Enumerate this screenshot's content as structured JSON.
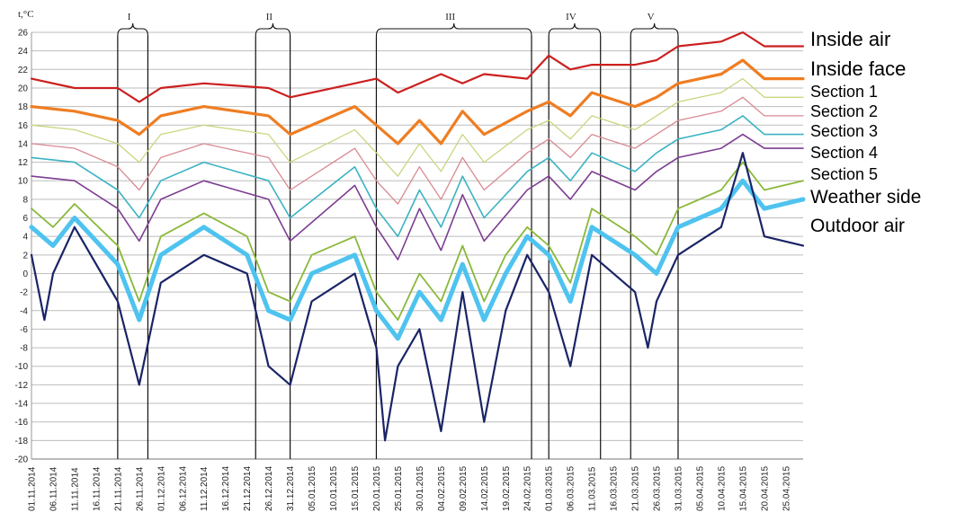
{
  "chart_data": {
    "type": "line",
    "ylabel": "t,°C",
    "ylim": [
      -20,
      26
    ],
    "yticks": [
      -20,
      -18,
      -16,
      -14,
      -12,
      -10,
      -8,
      -6,
      -4,
      -2,
      0,
      2,
      4,
      6,
      8,
      10,
      12,
      14,
      16,
      18,
      20,
      22,
      24,
      26
    ],
    "grid": "horizontal",
    "legend_placement": "right",
    "x_start": "01.11.2014",
    "x_end": "29.04.2015",
    "x_tick_labels": [
      "01.11.2014",
      "06.11.2014",
      "11.11.2014",
      "16.11.2014",
      "21.11.2014",
      "26.11.2014",
      "01.12.2014",
      "06.12.2014",
      "11.12.2014",
      "16.12.2014",
      "21.12.2014",
      "26.12.2014",
      "31.12.2014",
      "05.01.2015",
      "10.01.2015",
      "15.01.2015",
      "20.01.2015",
      "25.01.2015",
      "30.01.2015",
      "04.02.2015",
      "09.02.2015",
      "14.02.2015",
      "19.02.2015",
      "24.02.2015",
      "01.03.2015",
      "06.03.2015",
      "11.03.2015",
      "16.03.2015",
      "21.03.2015",
      "26.03.2015",
      "31.03.2015",
      "05.04.2015",
      "10.04.2015",
      "15.04.2015",
      "20.04.2015",
      "25.04.2015"
    ],
    "periods": [
      {
        "label": "I",
        "start": "21.11.2014",
        "end": "28.11.2014"
      },
      {
        "label": "II",
        "start": "23.12.2014",
        "end": "31.12.2014"
      },
      {
        "label": "III",
        "start": "20.01.2015",
        "end": "25.02.2015"
      },
      {
        "label": "IV",
        "start": "01.03.2015",
        "end": "13.03.2015"
      },
      {
        "label": "V",
        "start": "20.03.2015",
        "end": "31.03.2015"
      }
    ],
    "series": [
      {
        "name": "Inside air",
        "color": "#cc1f1f",
        "points": [
          [
            "01.11.2014",
            21
          ],
          [
            "11.11.2014",
            20
          ],
          [
            "21.11.2014",
            20
          ],
          [
            "26.11.2014",
            18.5
          ],
          [
            "01.12.2014",
            20
          ],
          [
            "11.12.2014",
            20.5
          ],
          [
            "26.12.2014",
            20
          ],
          [
            "31.12.2014",
            19
          ],
          [
            "15.01.2015",
            20.5
          ],
          [
            "20.01.2015",
            21
          ],
          [
            "25.01.2015",
            19.5
          ],
          [
            "04.02.2015",
            21.5
          ],
          [
            "09.02.2015",
            20.5
          ],
          [
            "14.02.2015",
            21.5
          ],
          [
            "24.02.2015",
            21
          ],
          [
            "01.03.2015",
            23.5
          ],
          [
            "06.03.2015",
            22
          ],
          [
            "11.03.2015",
            22.5
          ],
          [
            "21.03.2015",
            22.5
          ],
          [
            "26.03.2015",
            23
          ],
          [
            "31.03.2015",
            24.5
          ],
          [
            "10.04.2015",
            25
          ],
          [
            "15.04.2015",
            26
          ],
          [
            "20.04.2015",
            24.5
          ],
          [
            "29.04.2015",
            24.5
          ]
        ]
      },
      {
        "name": "Inside face",
        "color": "#ef7d22",
        "points": [
          [
            "01.11.2014",
            18
          ],
          [
            "11.11.2014",
            17.5
          ],
          [
            "21.11.2014",
            16.5
          ],
          [
            "26.11.2014",
            15
          ],
          [
            "01.12.2014",
            17
          ],
          [
            "11.12.2014",
            18
          ],
          [
            "26.12.2014",
            17
          ],
          [
            "31.12.2014",
            15
          ],
          [
            "15.01.2015",
            18
          ],
          [
            "20.01.2015",
            16
          ],
          [
            "25.01.2015",
            14
          ],
          [
            "30.01.2015",
            16.5
          ],
          [
            "04.02.2015",
            14
          ],
          [
            "09.02.2015",
            17.5
          ],
          [
            "14.02.2015",
            15
          ],
          [
            "24.02.2015",
            17.5
          ],
          [
            "01.03.2015",
            18.5
          ],
          [
            "06.03.2015",
            17
          ],
          [
            "11.03.2015",
            19.5
          ],
          [
            "21.03.2015",
            18
          ],
          [
            "26.03.2015",
            19
          ],
          [
            "31.03.2015",
            20.5
          ],
          [
            "10.04.2015",
            21.5
          ],
          [
            "15.04.2015",
            23
          ],
          [
            "20.04.2015",
            21
          ],
          [
            "29.04.2015",
            21
          ]
        ]
      },
      {
        "name": "Section 1",
        "color": "#c7d77f",
        "points": [
          [
            "01.11.2014",
            16
          ],
          [
            "11.11.2014",
            15.5
          ],
          [
            "21.11.2014",
            14
          ],
          [
            "26.11.2014",
            12
          ],
          [
            "01.12.2014",
            15
          ],
          [
            "11.12.2014",
            16
          ],
          [
            "26.12.2014",
            15
          ],
          [
            "31.12.2014",
            12
          ],
          [
            "15.01.2015",
            15.5
          ],
          [
            "20.01.2015",
            13
          ],
          [
            "25.01.2015",
            10.5
          ],
          [
            "30.01.2015",
            14
          ],
          [
            "04.02.2015",
            11
          ],
          [
            "09.02.2015",
            15
          ],
          [
            "14.02.2015",
            12
          ],
          [
            "24.02.2015",
            15.5
          ],
          [
            "01.03.2015",
            16.5
          ],
          [
            "06.03.2015",
            14.5
          ],
          [
            "11.03.2015",
            17
          ],
          [
            "21.03.2015",
            15.5
          ],
          [
            "26.03.2015",
            17
          ],
          [
            "31.03.2015",
            18.5
          ],
          [
            "10.04.2015",
            19.5
          ],
          [
            "15.04.2015",
            21
          ],
          [
            "20.04.2015",
            19
          ],
          [
            "29.04.2015",
            19
          ]
        ]
      },
      {
        "name": "Section 2",
        "color": "#d98a92",
        "points": [
          [
            "01.11.2014",
            14
          ],
          [
            "11.11.2014",
            13.5
          ],
          [
            "21.11.2014",
            11.5
          ],
          [
            "26.11.2014",
            9
          ],
          [
            "01.12.2014",
            12.5
          ],
          [
            "11.12.2014",
            14
          ],
          [
            "26.12.2014",
            12.5
          ],
          [
            "31.12.2014",
            9
          ],
          [
            "15.01.2015",
            13.5
          ],
          [
            "20.01.2015",
            10
          ],
          [
            "25.01.2015",
            7.5
          ],
          [
            "30.01.2015",
            11.5
          ],
          [
            "04.02.2015",
            8
          ],
          [
            "09.02.2015",
            12.5
          ],
          [
            "14.02.2015",
            9
          ],
          [
            "24.02.2015",
            13
          ],
          [
            "01.03.2015",
            14.5
          ],
          [
            "06.03.2015",
            12.5
          ],
          [
            "11.03.2015",
            15
          ],
          [
            "21.03.2015",
            13.5
          ],
          [
            "26.03.2015",
            15
          ],
          [
            "31.03.2015",
            16.5
          ],
          [
            "10.04.2015",
            17.5
          ],
          [
            "15.04.2015",
            19
          ],
          [
            "20.04.2015",
            17
          ],
          [
            "29.04.2015",
            17
          ]
        ]
      },
      {
        "name": "Section 3",
        "color": "#3bb3c3",
        "points": [
          [
            "01.11.2014",
            12.5
          ],
          [
            "11.11.2014",
            12
          ],
          [
            "21.11.2014",
            9
          ],
          [
            "26.11.2014",
            6
          ],
          [
            "01.12.2014",
            10
          ],
          [
            "11.12.2014",
            12
          ],
          [
            "26.12.2014",
            10
          ],
          [
            "31.12.2014",
            6
          ],
          [
            "15.01.2015",
            11.5
          ],
          [
            "20.01.2015",
            7
          ],
          [
            "25.01.2015",
            4
          ],
          [
            "30.01.2015",
            9
          ],
          [
            "04.02.2015",
            5
          ],
          [
            "09.02.2015",
            10.5
          ],
          [
            "14.02.2015",
            6
          ],
          [
            "24.02.2015",
            11
          ],
          [
            "01.03.2015",
            12.5
          ],
          [
            "06.03.2015",
            10
          ],
          [
            "11.03.2015",
            13
          ],
          [
            "21.03.2015",
            11
          ],
          [
            "26.03.2015",
            13
          ],
          [
            "31.03.2015",
            14.5
          ],
          [
            "10.04.2015",
            15.5
          ],
          [
            "15.04.2015",
            17
          ],
          [
            "20.04.2015",
            15
          ],
          [
            "29.04.2015",
            15
          ]
        ]
      },
      {
        "name": "Section 4",
        "color": "#7d3d91",
        "points": [
          [
            "01.11.2014",
            10.5
          ],
          [
            "11.11.2014",
            10
          ],
          [
            "21.11.2014",
            7
          ],
          [
            "26.11.2014",
            3.5
          ],
          [
            "01.12.2014",
            8
          ],
          [
            "11.12.2014",
            10
          ],
          [
            "26.12.2014",
            8
          ],
          [
            "31.12.2014",
            3.5
          ],
          [
            "15.01.2015",
            9.5
          ],
          [
            "20.01.2015",
            5
          ],
          [
            "25.01.2015",
            1.5
          ],
          [
            "30.01.2015",
            7
          ],
          [
            "04.02.2015",
            2.5
          ],
          [
            "09.02.2015",
            8.5
          ],
          [
            "14.02.2015",
            3.5
          ],
          [
            "24.02.2015",
            9
          ],
          [
            "01.03.2015",
            10.5
          ],
          [
            "06.03.2015",
            8
          ],
          [
            "11.03.2015",
            11
          ],
          [
            "21.03.2015",
            9
          ],
          [
            "26.03.2015",
            11
          ],
          [
            "31.03.2015",
            12.5
          ],
          [
            "10.04.2015",
            13.5
          ],
          [
            "15.04.2015",
            15
          ],
          [
            "20.04.2015",
            13.5
          ],
          [
            "29.04.2015",
            13.5
          ]
        ]
      },
      {
        "name": "Section 5",
        "color": "#8ab83a",
        "points": [
          [
            "01.11.2014",
            7
          ],
          [
            "06.11.2014",
            5
          ],
          [
            "11.11.2014",
            7.5
          ],
          [
            "21.11.2014",
            3
          ],
          [
            "26.11.2014",
            -3
          ],
          [
            "01.12.2014",
            4
          ],
          [
            "11.12.2014",
            6.5
          ],
          [
            "21.12.2014",
            4
          ],
          [
            "26.12.2014",
            -2
          ],
          [
            "31.12.2014",
            -3
          ],
          [
            "05.01.2015",
            2
          ],
          [
            "15.01.2015",
            4
          ],
          [
            "20.01.2015",
            -2
          ],
          [
            "25.01.2015",
            -5
          ],
          [
            "30.01.2015",
            0
          ],
          [
            "04.02.2015",
            -3
          ],
          [
            "09.02.2015",
            3
          ],
          [
            "14.02.2015",
            -3
          ],
          [
            "19.02.2015",
            2
          ],
          [
            "24.02.2015",
            5
          ],
          [
            "01.03.2015",
            3
          ],
          [
            "06.03.2015",
            -1
          ],
          [
            "11.03.2015",
            7
          ],
          [
            "21.03.2015",
            4
          ],
          [
            "26.03.2015",
            2
          ],
          [
            "31.03.2015",
            7
          ],
          [
            "10.04.2015",
            9
          ],
          [
            "15.04.2015",
            12
          ],
          [
            "20.04.2015",
            9
          ],
          [
            "29.04.2015",
            10
          ]
        ]
      },
      {
        "name": "Weather side",
        "color": "#4fc3ef",
        "points": [
          [
            "01.11.2014",
            5
          ],
          [
            "06.11.2014",
            3
          ],
          [
            "11.11.2014",
            6
          ],
          [
            "21.11.2014",
            1
          ],
          [
            "26.11.2014",
            -5
          ],
          [
            "01.12.2014",
            2
          ],
          [
            "11.12.2014",
            5
          ],
          [
            "21.12.2014",
            2
          ],
          [
            "26.12.2014",
            -4
          ],
          [
            "31.12.2014",
            -5
          ],
          [
            "05.01.2015",
            0
          ],
          [
            "15.01.2015",
            2
          ],
          [
            "20.01.2015",
            -4
          ],
          [
            "25.01.2015",
            -7
          ],
          [
            "30.01.2015",
            -2
          ],
          [
            "04.02.2015",
            -5
          ],
          [
            "09.02.2015",
            1
          ],
          [
            "14.02.2015",
            -5
          ],
          [
            "19.02.2015",
            0
          ],
          [
            "24.02.2015",
            4
          ],
          [
            "01.03.2015",
            2
          ],
          [
            "06.03.2015",
            -3
          ],
          [
            "11.03.2015",
            5
          ],
          [
            "21.03.2015",
            2
          ],
          [
            "26.03.2015",
            0
          ],
          [
            "31.03.2015",
            5
          ],
          [
            "10.04.2015",
            7
          ],
          [
            "15.04.2015",
            10
          ],
          [
            "20.04.2015",
            7
          ],
          [
            "29.04.2015",
            8
          ]
        ]
      },
      {
        "name": "Outdoor air",
        "color": "#1a2466",
        "points": [
          [
            "01.11.2014",
            2
          ],
          [
            "04.11.2014",
            -5
          ],
          [
            "06.11.2014",
            0
          ],
          [
            "11.11.2014",
            5
          ],
          [
            "21.11.2014",
            -3
          ],
          [
            "26.11.2014",
            -12
          ],
          [
            "01.12.2014",
            -1
          ],
          [
            "11.12.2014",
            2
          ],
          [
            "21.12.2014",
            0
          ],
          [
            "26.12.2014",
            -10
          ],
          [
            "31.12.2014",
            -12
          ],
          [
            "05.01.2015",
            -3
          ],
          [
            "15.01.2015",
            0
          ],
          [
            "20.01.2015",
            -8
          ],
          [
            "22.01.2015",
            -18
          ],
          [
            "25.01.2015",
            -10
          ],
          [
            "30.01.2015",
            -6
          ],
          [
            "04.02.2015",
            -17
          ],
          [
            "09.02.2015",
            -2
          ],
          [
            "14.02.2015",
            -16
          ],
          [
            "19.02.2015",
            -4
          ],
          [
            "24.02.2015",
            2
          ],
          [
            "01.03.2015",
            -2
          ],
          [
            "06.03.2015",
            -10
          ],
          [
            "11.03.2015",
            2
          ],
          [
            "21.03.2015",
            -2
          ],
          [
            "24.03.2015",
            -8
          ],
          [
            "26.03.2015",
            -3
          ],
          [
            "31.03.2015",
            2
          ],
          [
            "10.04.2015",
            5
          ],
          [
            "15.04.2015",
            13
          ],
          [
            "20.04.2015",
            4
          ],
          [
            "29.04.2015",
            3
          ]
        ]
      }
    ]
  }
}
